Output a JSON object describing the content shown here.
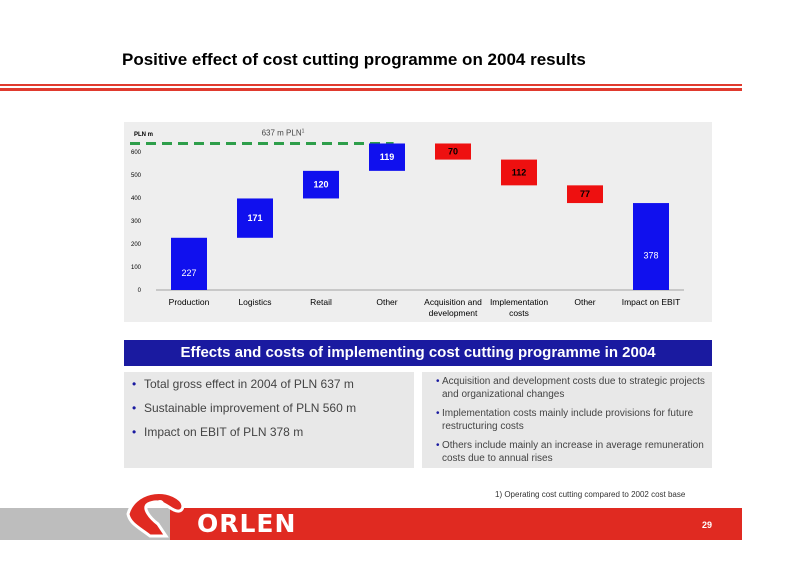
{
  "page": {
    "title": "Positive effect of cost cutting programme on 2004 results",
    "page_number": "29",
    "footnote": "1) Operating cost cutting compared to 2002 cost base",
    "brand": "ORLEN"
  },
  "chart_data": {
    "type": "bar",
    "subtype": "waterfall",
    "ylabel": "PLN m",
    "ylim": [
      0,
      600
    ],
    "yticks": [
      "0",
      "100",
      "200",
      "300",
      "400",
      "500",
      "600"
    ],
    "categories": [
      "Production",
      "Logistics",
      "Retail",
      "Other",
      "Acquisition and development",
      "Implementation costs",
      "Other",
      "Impact on EBIT"
    ],
    "values": [
      227,
      171,
      120,
      119,
      -70,
      -112,
      -77,
      378
    ],
    "value_labels": [
      "227",
      "171",
      "120",
      "119",
      "70",
      "112",
      "77",
      "378"
    ],
    "reference_line": {
      "value": 637,
      "label": "637 m  PLN",
      "superscript": "1"
    },
    "colors": {
      "positive": "#1010ee",
      "negative": "#ee1010",
      "reference": "#2e9e4a"
    },
    "grid": false
  },
  "banner": {
    "title": "Effects and costs of implementing cost cutting programme in 2004"
  },
  "left_box": {
    "items": [
      "Total gross effect in 2004 of PLN 637 m",
      "Sustainable improvement of PLN 560 m",
      "Impact on EBIT of PLN 378 m"
    ]
  },
  "right_box": {
    "items": [
      "Acquisition and development costs due to strategic projects and organizational changes",
      "Implementation costs mainly include provisions for future restructuring costs",
      "Others include mainly an increase in average remuneration costs due to annual rises"
    ]
  }
}
